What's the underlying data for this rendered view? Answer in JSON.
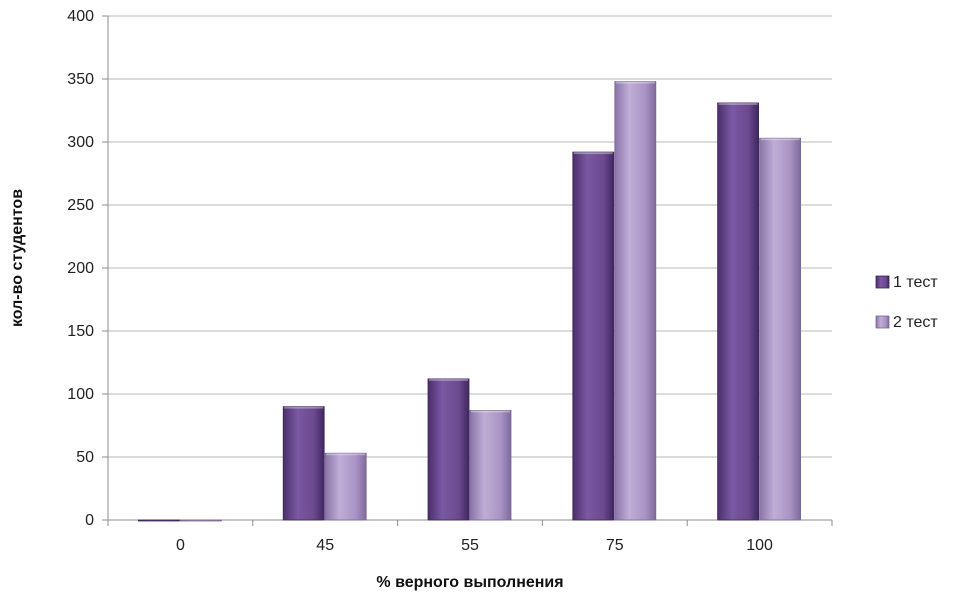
{
  "chart_data": {
    "type": "bar",
    "title": "",
    "xlabel": "% верного выполнения",
    "ylabel": "кол-во студентов",
    "categories": [
      "0",
      "45",
      "55",
      "75",
      "100"
    ],
    "ylim": [
      0,
      400
    ],
    "yticks": [
      0,
      50,
      100,
      150,
      200,
      250,
      300,
      350,
      400
    ],
    "grid": true,
    "legend_position": "right",
    "series": [
      {
        "name": "1 тест",
        "values": [
          0,
          90,
          112,
          292,
          331
        ],
        "color": "#6b4a8f"
      },
      {
        "name": "2 тест",
        "values": [
          0,
          53,
          87,
          348,
          303
        ],
        "color": "#a993c4"
      }
    ]
  }
}
